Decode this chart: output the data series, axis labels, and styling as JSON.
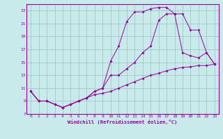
{
  "xlabel": "Windchill (Refroidissement éolien,°C)",
  "bg_color": "#c8eaea",
  "grid_color": "#9ec8c8",
  "line_color": "#990099",
  "xlim": [
    -0.5,
    23.5
  ],
  "ylim": [
    7,
    24
  ],
  "xticks": [
    0,
    1,
    2,
    3,
    4,
    5,
    6,
    7,
    8,
    9,
    10,
    11,
    12,
    13,
    14,
    15,
    16,
    17,
    18,
    19,
    20,
    21,
    22,
    23
  ],
  "yticks": [
    7,
    9,
    11,
    13,
    15,
    17,
    19,
    21,
    23
  ],
  "line1_x": [
    0,
    1,
    2,
    3,
    4,
    5,
    6,
    7,
    8,
    9,
    10,
    11,
    12,
    13,
    14,
    15,
    16,
    17,
    18,
    19,
    20,
    21,
    22,
    23
  ],
  "line1_y": [
    10.5,
    9.0,
    9.0,
    8.5,
    8.0,
    8.5,
    9.0,
    9.5,
    10.5,
    11.0,
    15.2,
    17.5,
    21.3,
    22.8,
    22.8,
    23.3,
    23.5,
    23.5,
    22.5,
    16.5,
    16.0,
    15.7,
    16.5,
    14.7
  ],
  "line2_x": [
    0,
    1,
    2,
    3,
    4,
    5,
    6,
    7,
    8,
    9,
    10,
    11,
    12,
    13,
    14,
    15,
    16,
    17,
    18,
    19,
    20,
    21,
    22,
    23
  ],
  "line2_y": [
    10.5,
    9.0,
    9.0,
    8.5,
    8.0,
    8.5,
    9.0,
    9.5,
    10.5,
    11.0,
    13.0,
    13.0,
    14.0,
    15.0,
    16.5,
    17.5,
    21.5,
    22.5,
    22.5,
    22.5,
    20.0,
    20.0,
    16.5,
    14.7
  ],
  "line3_x": [
    0,
    1,
    2,
    3,
    4,
    5,
    6,
    7,
    8,
    9,
    10,
    11,
    12,
    13,
    14,
    15,
    16,
    17,
    18,
    19,
    20,
    21,
    22,
    23
  ],
  "line3_y": [
    10.5,
    9.0,
    9.0,
    8.5,
    8.0,
    8.5,
    9.0,
    9.5,
    10.0,
    10.2,
    10.5,
    11.0,
    11.5,
    12.0,
    12.5,
    13.0,
    13.3,
    13.7,
    14.0,
    14.2,
    14.3,
    14.5,
    14.5,
    14.7
  ]
}
